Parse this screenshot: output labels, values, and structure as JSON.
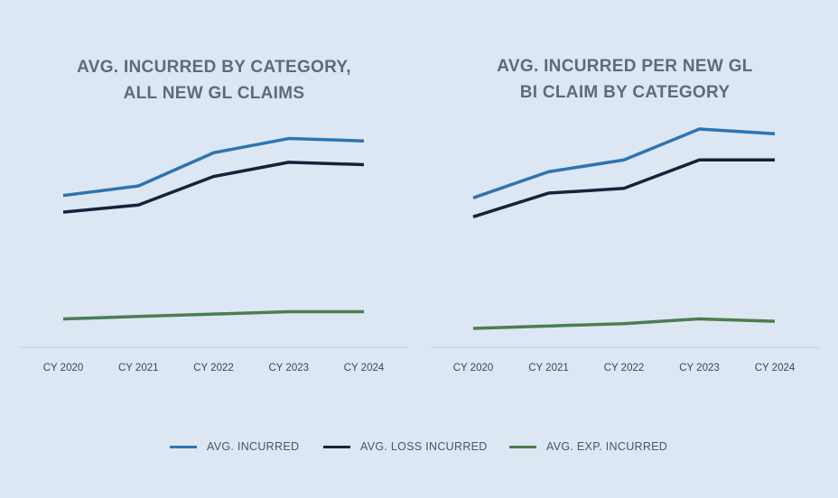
{
  "colors": {
    "avg_incurred": "#2e74b0",
    "avg_loss_incurred": "#13243a",
    "avg_exp_incurred": "#4d7d4f",
    "axis": "#c3ccd8",
    "tick_text": "#3d4652"
  },
  "legend": [
    {
      "label": "AVG. INCURRED",
      "color": "#2e74b0"
    },
    {
      "label": "AVG. LOSS INCURRED",
      "color": "#13243a"
    },
    {
      "label": "AVG. EXP. INCURRED",
      "color": "#4d7d4f"
    }
  ],
  "chart_data": [
    {
      "type": "line",
      "title_lines": [
        "AVG. INCURRED BY CATEGORY,",
        "ALL NEW GL CLAIMS"
      ],
      "categories": [
        "CY 2020",
        "CY 2021",
        "CY 2022",
        "CY 2023",
        "CY 2024"
      ],
      "ylim": [
        0,
        100
      ],
      "grid": false,
      "legend": "bottom",
      "series": [
        {
          "name": "AVG. INCURRED",
          "values": [
            64,
            68,
            82,
            88,
            87
          ]
        },
        {
          "name": "AVG. LOSS INCURRED",
          "values": [
            57,
            60,
            72,
            78,
            77
          ]
        },
        {
          "name": "AVG. EXP. INCURRED",
          "values": [
            12,
            13,
            14,
            15,
            15
          ]
        }
      ]
    },
    {
      "type": "line",
      "title_lines": [
        "AVG. INCURRED PER NEW GL",
        "BI CLAIM BY CATEGORY"
      ],
      "categories": [
        "CY 2020",
        "CY 2021",
        "CY 2022",
        "CY 2023",
        "CY 2024"
      ],
      "ylim": [
        0,
        100
      ],
      "grid": false,
      "legend": "bottom",
      "series": [
        {
          "name": "AVG. INCURRED",
          "values": [
            63,
            74,
            79,
            92,
            90
          ]
        },
        {
          "name": "AVG. LOSS INCURRED",
          "values": [
            55,
            65,
            67,
            79,
            79
          ]
        },
        {
          "name": "AVG. EXP. INCURRED",
          "values": [
            8,
            9,
            10,
            12,
            11
          ]
        }
      ]
    }
  ]
}
